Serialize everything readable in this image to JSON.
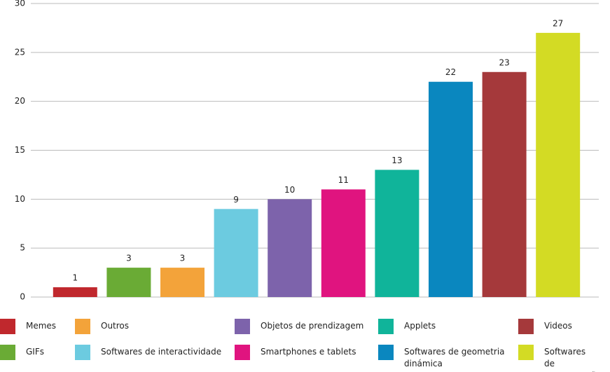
{
  "chart_data": {
    "type": "bar",
    "categories": [
      "Memes",
      "GIFs",
      "Outros",
      "Softwares de interactividade",
      "Objetos de prendizagem",
      "Smartphones e tablets",
      "Applets",
      "Softwares de geometria dinámica",
      "Videos",
      "Softwares de apresentação"
    ],
    "values": [
      1,
      3,
      3,
      9,
      10,
      11,
      13,
      22,
      23,
      27
    ],
    "colors": [
      "#c0282d",
      "#6aab35",
      "#f3a33a",
      "#6ccbe0",
      "#7d63ab",
      "#e0147f",
      "#10b49a",
      "#0a87bf",
      "#a5393b",
      "#d3db24"
    ],
    "ylim": [
      0,
      30
    ],
    "yticks": [
      0,
      5,
      10,
      15,
      20,
      25,
      30
    ],
    "grid": true
  }
}
